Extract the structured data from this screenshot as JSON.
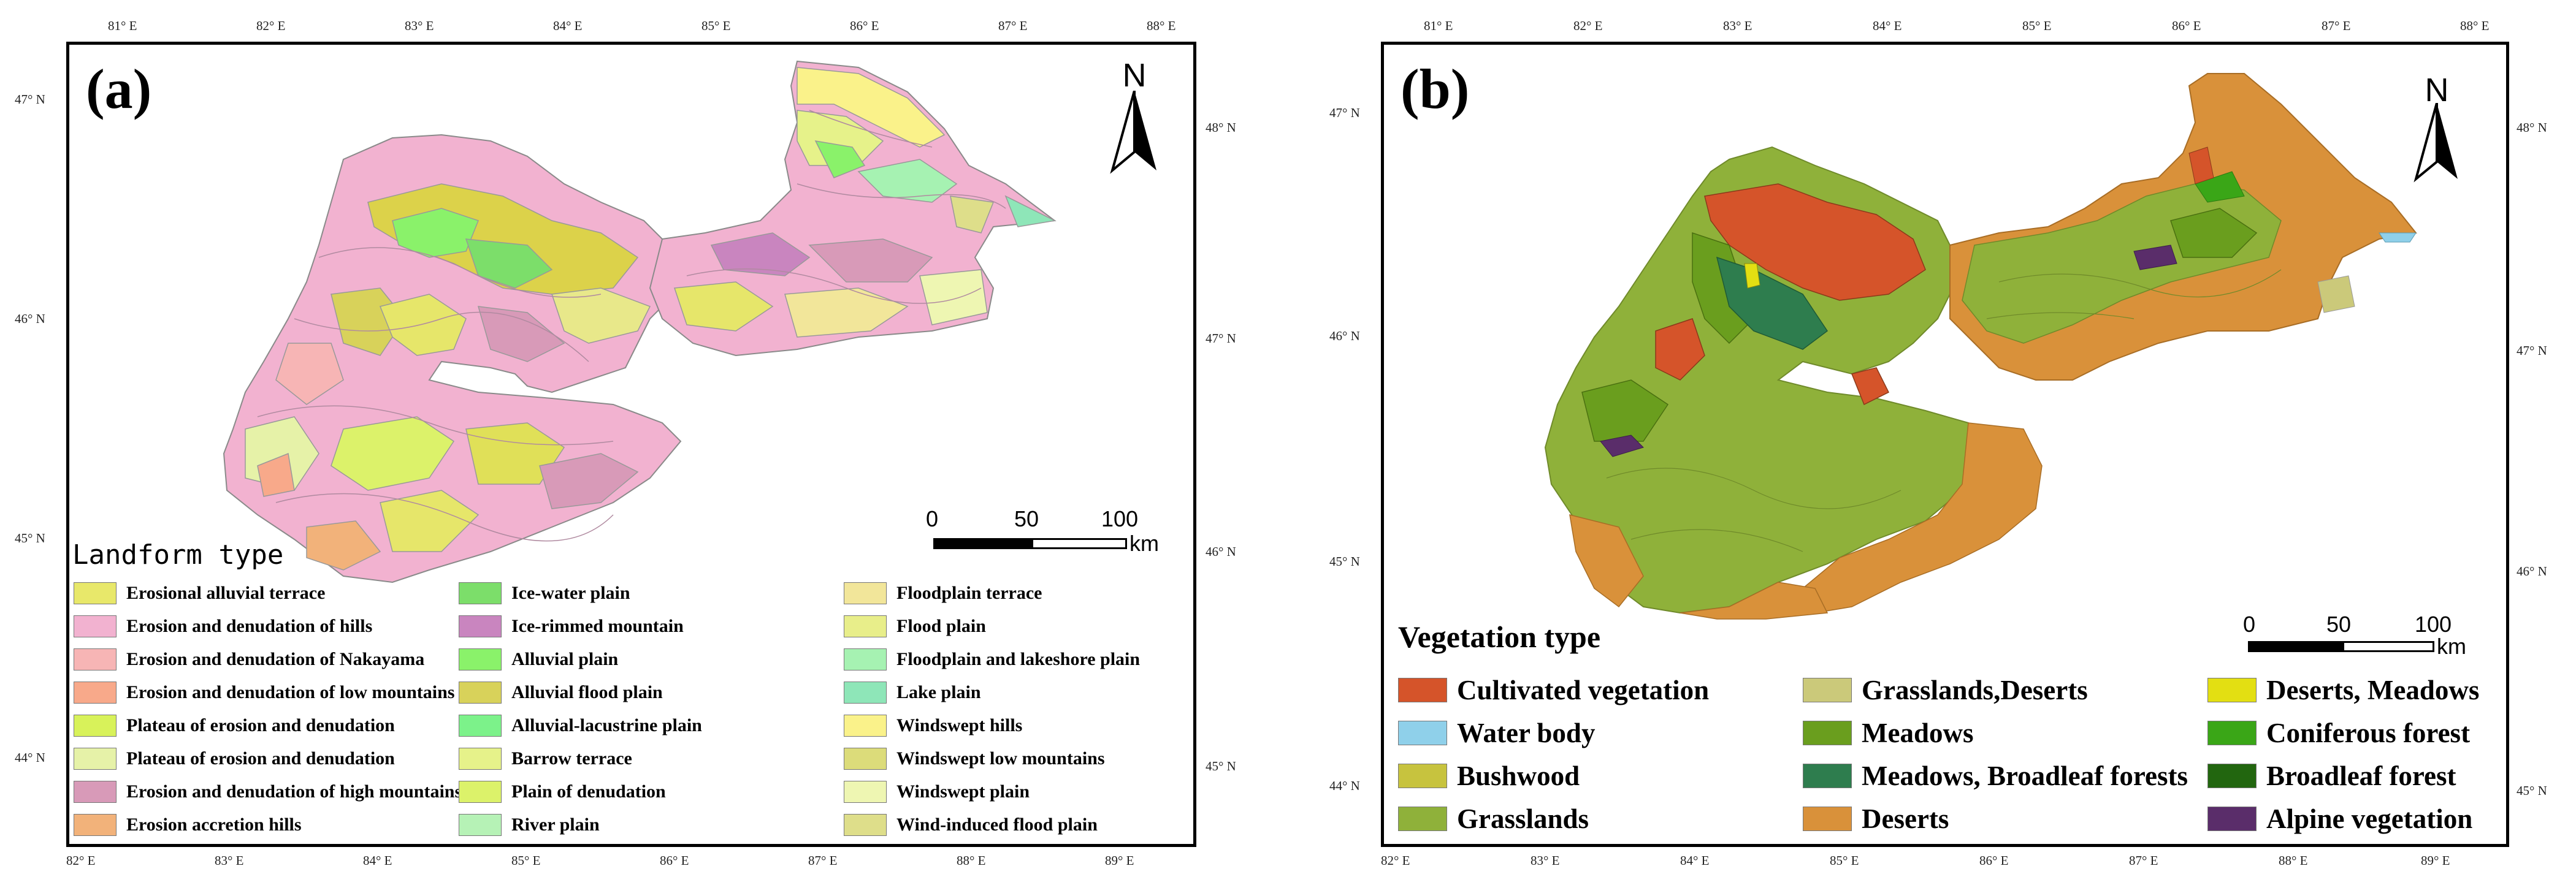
{
  "panels": [
    {
      "letter": "(a)",
      "north_label": "N",
      "scale": {
        "labels": [
          "0",
          "50",
          "100"
        ],
        "unit": "km"
      },
      "top_ticks": [
        "81° E",
        "82° E",
        "83° E",
        "84° E",
        "85° E",
        "86° E",
        "87° E",
        "88° E"
      ],
      "bottom_ticks": [
        "82° E",
        "83° E",
        "84° E",
        "85° E",
        "86° E",
        "87° E",
        "88° E",
        "89° E"
      ],
      "left_ticks": [
        "47° N",
        "46° N",
        "45° N",
        "44° N"
      ],
      "right_ticks": [
        "48° N",
        "47° N",
        "46° N",
        "45° N"
      ],
      "legend": {
        "title": "Landform type",
        "items": [
          {
            "label": "Erosional alluvial terrace",
            "color": "#e8e86a"
          },
          {
            "label": "Erosion and denudation of hills",
            "color": "#f2b2d0"
          },
          {
            "label": "Erosion and denudation of Nakayama",
            "color": "#f7b5b5"
          },
          {
            "label": "Erosion and denudation of low mountains",
            "color": "#f8a98a"
          },
          {
            "label": "Plateau of erosion and denudation",
            "color": "#d8f25a"
          },
          {
            "label": "Plateau of erosion and denudation",
            "color": "#e6f2a8"
          },
          {
            "label": "Erosion and denudation of high mountains",
            "color": "#d89ab8"
          },
          {
            "label": "Erosion accretion hills",
            "color": "#f2b27a"
          },
          {
            "label": "Ice-water plain",
            "color": "#7cde6a"
          },
          {
            "label": "Ice-rimmed mountain",
            "color": "#c985bf"
          },
          {
            "label": "Alluvial plain",
            "color": "#8af26a"
          },
          {
            "label": "Alluvial flood plain",
            "color": "#d8d25a"
          },
          {
            "label": "Alluvial-lacustrine plain",
            "color": "#7cf28a"
          },
          {
            "label": "Barrow terrace",
            "color": "#e6f28a"
          },
          {
            "label": "Plain of denudation",
            "color": "#dcf26a"
          },
          {
            "label": "River plain",
            "color": "#b6f2b6"
          },
          {
            "label": "Floodplain terrace",
            "color": "#f2e69a"
          },
          {
            "label": "Flood plain",
            "color": "#e8ee8a"
          },
          {
            "label": "Floodplain and lakeshore plain",
            "color": "#a6f2b2"
          },
          {
            "label": "Lake plain",
            "color": "#8ee6b8"
          },
          {
            "label": "Windswept hills",
            "color": "#faf28a"
          },
          {
            "label": "Windswept low mountains",
            "color": "#dcdc7a"
          },
          {
            "label": "Windswept plain",
            "color": "#eef6b2"
          },
          {
            "label": "Wind-induced flood plain",
            "color": "#dede8a"
          }
        ]
      }
    },
    {
      "letter": "(b)",
      "north_label": "N",
      "scale": {
        "labels": [
          "0",
          "50",
          "100"
        ],
        "unit": "km"
      },
      "top_ticks": [
        "81° E",
        "82° E",
        "83° E",
        "84° E",
        "85° E",
        "86° E",
        "87° E",
        "88° E"
      ],
      "bottom_ticks": [
        "82° E",
        "83° E",
        "84° E",
        "85° E",
        "86° E",
        "87° E",
        "88° E",
        "89° E"
      ],
      "left_ticks": [
        "47° N",
        "46° N",
        "45° N",
        "44° N"
      ],
      "right_ticks": [
        "48° N",
        "47° N",
        "46° N",
        "45° N"
      ],
      "legend": {
        "title": "Vegetation type",
        "items": [
          {
            "label": "Cultivated vegetation",
            "color": "#d5542a"
          },
          {
            "label": "Water body",
            "color": "#8fd0ea"
          },
          {
            "label": "Bushwood",
            "color": "#c7c33e"
          },
          {
            "label": "Grasslands",
            "color": "#8fb13a"
          },
          {
            "label": "Grasslands,Deserts",
            "color": "#cbc97a"
          },
          {
            "label": "Meadows",
            "color": "#6a9e1e"
          },
          {
            "label": "Meadows, Broadleaf forests",
            "color": "#2e7d4e"
          },
          {
            "label": "Deserts",
            "color": "#d9913a"
          },
          {
            "label": "Deserts, Meadows",
            "color": "#e3df12"
          },
          {
            "label": "Coniferous forest",
            "color": "#3aa617"
          },
          {
            "label": "Broadleaf forest",
            "color": "#22660f"
          },
          {
            "label": "Alpine vegetation",
            "color": "#5a2d6a"
          }
        ]
      }
    }
  ]
}
